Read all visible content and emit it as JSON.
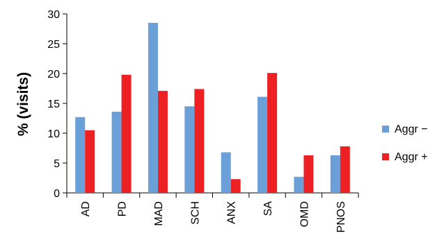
{
  "chart_data": {
    "type": "bar",
    "title": "",
    "xlabel": "",
    "ylabel": "% (visits)",
    "ylim": [
      0,
      30
    ],
    "yticks": [
      0,
      5,
      10,
      15,
      20,
      25,
      30
    ],
    "grid": false,
    "legend_position": "right",
    "categories": [
      "AD",
      "PD",
      "MAD",
      "SCH",
      "ANX",
      "SA",
      "OMD",
      "PNOS"
    ],
    "series": [
      {
        "name": "Aggr −",
        "color": "#6a9fd8",
        "values": [
          12.7,
          13.6,
          28.5,
          14.5,
          6.8,
          16.1,
          2.7,
          6.3
        ]
      },
      {
        "name": "Aggr +",
        "color": "#ed2024",
        "values": [
          10.5,
          19.8,
          17.1,
          17.4,
          2.3,
          20.1,
          6.3,
          7.8
        ]
      }
    ]
  }
}
